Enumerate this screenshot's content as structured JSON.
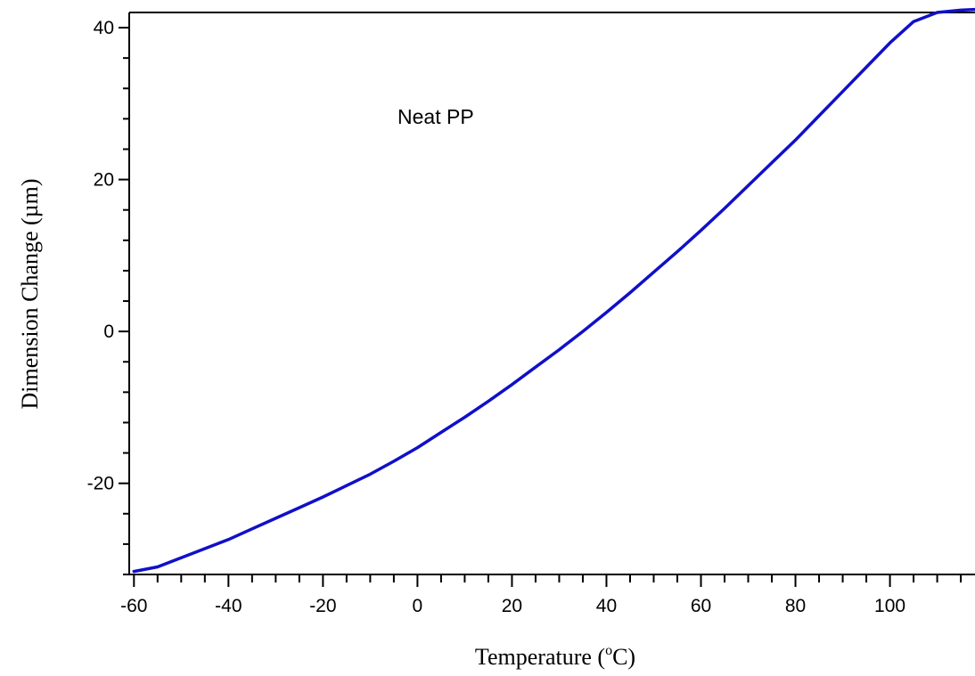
{
  "chart_data": {
    "type": "line",
    "title": "",
    "annotation": "Neat PP",
    "xlabel_prefix": "Temperature (",
    "xlabel_superscript": "o",
    "xlabel_suffix": "C)",
    "ylabel": "Dimension Change (µm)",
    "xlim": [
      -61,
      118
    ],
    "ylim": [
      -32,
      42
    ],
    "xticks": [
      -60,
      -40,
      -20,
      0,
      20,
      40,
      60,
      80,
      100
    ],
    "yticks": [
      -20,
      0,
      20,
      40
    ],
    "x_minor_step": 5,
    "y_minor_step": 4,
    "grid": false,
    "line_color": "#1010c8",
    "series": [
      {
        "x": [
          -60,
          -55,
          -50,
          -45,
          -40,
          -35,
          -30,
          -25,
          -20,
          -15,
          -10,
          -5,
          0,
          5,
          10,
          15,
          20,
          25,
          30,
          35,
          40,
          45,
          50,
          55,
          60,
          65,
          70,
          75,
          80,
          85,
          90,
          95,
          100,
          105,
          110,
          115,
          118
        ],
        "y": [
          -31.6,
          -31.0,
          -29.8,
          -28.6,
          -27.4,
          -26.0,
          -24.6,
          -23.2,
          -21.8,
          -20.3,
          -18.8,
          -17.1,
          -15.3,
          -13.3,
          -11.3,
          -9.2,
          -7.0,
          -4.7,
          -2.4,
          0.0,
          2.5,
          5.1,
          7.8,
          10.5,
          13.3,
          16.2,
          19.2,
          22.2,
          25.2,
          28.4,
          31.6,
          34.8,
          38.0,
          40.8,
          42.0,
          42.3,
          42.4
        ]
      }
    ]
  }
}
